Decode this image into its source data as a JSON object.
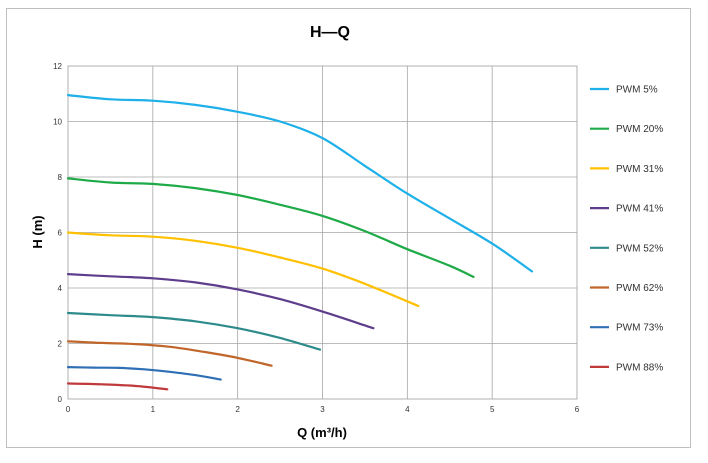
{
  "chart_data": {
    "type": "line",
    "title": "H—Q",
    "xlabel": "Q (m³/h)",
    "ylabel": "H (m)",
    "xlim": [
      0,
      6
    ],
    "ylim": [
      0,
      12
    ],
    "xticks": [
      "0",
      "1",
      "2",
      "3",
      "4",
      "5",
      "6"
    ],
    "yticks": [
      "0",
      "2",
      "4",
      "6",
      "8",
      "10",
      "12"
    ],
    "grid": true,
    "legend_position": "right",
    "series": [
      {
        "name": "PWM 5%",
        "color": "#1eb0e8",
        "x": [
          0,
          0.5,
          1.0,
          1.5,
          2.0,
          2.5,
          3.0,
          3.5,
          4.0,
          4.5,
          5.0,
          5.47
        ],
        "y": [
          10.95,
          10.8,
          10.75,
          10.6,
          10.35,
          10.0,
          9.4,
          8.4,
          7.4,
          6.5,
          5.6,
          4.6
        ]
      },
      {
        "name": "PWM 20%",
        "color": "#1faa48",
        "x": [
          0,
          0.5,
          1.0,
          1.5,
          2.0,
          2.5,
          3.0,
          3.5,
          4.0,
          4.5,
          4.78
        ],
        "y": [
          7.95,
          7.8,
          7.75,
          7.6,
          7.35,
          7.0,
          6.6,
          6.05,
          5.4,
          4.8,
          4.4
        ]
      },
      {
        "name": "PWM 31%",
        "color": "#ffc000",
        "x": [
          0,
          0.5,
          1.0,
          1.5,
          2.0,
          2.5,
          3.0,
          3.5,
          4.13
        ],
        "y": [
          6.0,
          5.9,
          5.85,
          5.7,
          5.45,
          5.1,
          4.7,
          4.15,
          3.35
        ]
      },
      {
        "name": "PWM 41%",
        "color": "#5e3d8c",
        "x": [
          0,
          0.5,
          1.0,
          1.5,
          2.0,
          2.5,
          3.0,
          3.6
        ],
        "y": [
          4.5,
          4.42,
          4.35,
          4.2,
          3.95,
          3.6,
          3.15,
          2.55
        ]
      },
      {
        "name": "PWM 52%",
        "color": "#2e8b8b",
        "x": [
          0,
          0.5,
          1.0,
          1.5,
          2.0,
          2.5,
          2.97
        ],
        "y": [
          3.1,
          3.02,
          2.95,
          2.8,
          2.55,
          2.2,
          1.78
        ]
      },
      {
        "name": "PWM 62%",
        "color": "#c0662a",
        "x": [
          0,
          0.4,
          0.8,
          1.2,
          1.6,
          2.0,
          2.4
        ],
        "y": [
          2.08,
          2.02,
          1.98,
          1.88,
          1.7,
          1.48,
          1.2
        ]
      },
      {
        "name": "PWM 73%",
        "color": "#2f6fb5",
        "x": [
          0,
          0.3,
          0.6,
          0.9,
          1.2,
          1.5,
          1.8
        ],
        "y": [
          1.15,
          1.13,
          1.12,
          1.07,
          0.98,
          0.86,
          0.7
        ]
      },
      {
        "name": "PWM 88%",
        "color": "#c0393b",
        "x": [
          0,
          0.4,
          0.8,
          1.17
        ],
        "y": [
          0.56,
          0.53,
          0.47,
          0.35
        ]
      }
    ]
  }
}
